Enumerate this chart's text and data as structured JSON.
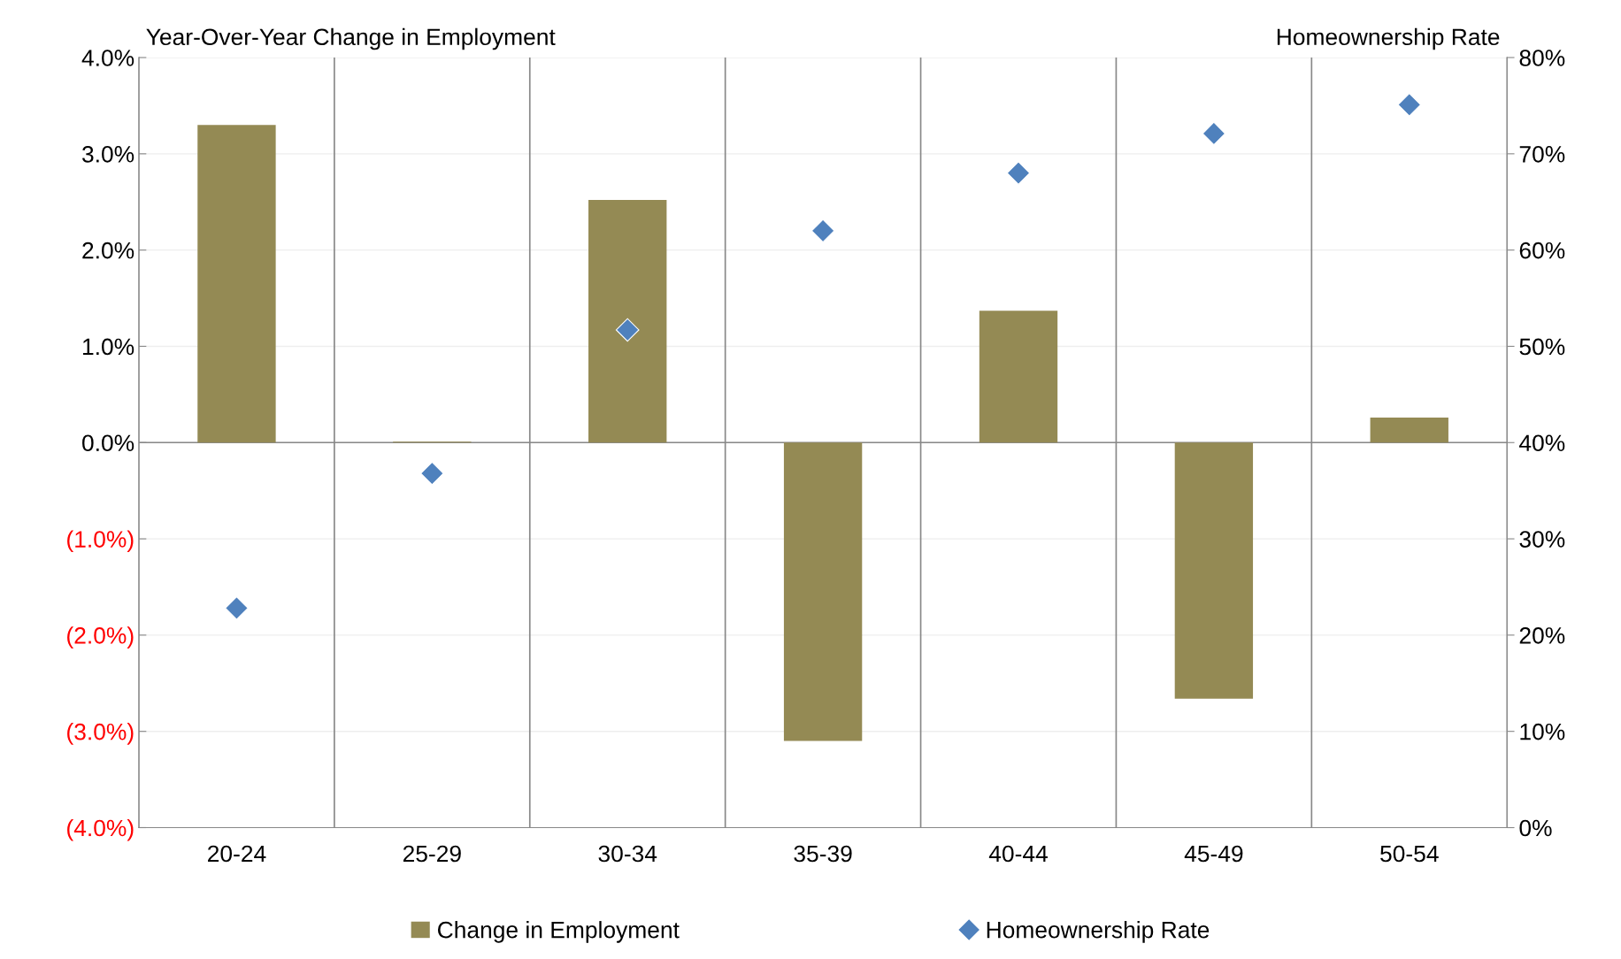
{
  "chart_data": {
    "type": "bar",
    "ylabel": "Year-Over-Year Change in Employment",
    "y2label": "Homeownership Rate",
    "categories": [
      "20-24",
      "25-29",
      "30-34",
      "35-39",
      "40-44",
      "45-49",
      "50-54"
    ],
    "series": [
      {
        "name": "Change in Employment",
        "color": "#948a54",
        "values": [
          3.3,
          0.01,
          2.52,
          -3.1,
          1.37,
          -2.66,
          0.26
        ]
      },
      {
        "name": "Homeownership Rate",
        "type": "scatter",
        "axis": "y2",
        "color": "#4f81bd",
        "marker": "diamond",
        "values": [
          22.8,
          36.8,
          51.7,
          62.0,
          68.0,
          72.1,
          75.1
        ]
      }
    ],
    "ylim": [
      -4,
      4
    ],
    "yticks": [
      {
        "value": 4,
        "label": "4.0%"
      },
      {
        "value": 3,
        "label": "3.0%"
      },
      {
        "value": 2,
        "label": "2.0%"
      },
      {
        "value": 1,
        "label": "1.0%"
      },
      {
        "value": 0,
        "label": "0.0%"
      },
      {
        "value": -1,
        "label": "(1.0%)"
      },
      {
        "value": -2,
        "label": "(2.0%)"
      },
      {
        "value": -3,
        "label": "(3.0%)"
      },
      {
        "value": -4,
        "label": "(4.0%)"
      }
    ],
    "y2lim": [
      0,
      80
    ],
    "y2ticks": [
      {
        "value": 80,
        "label": "80%"
      },
      {
        "value": 70,
        "label": "70%"
      },
      {
        "value": 60,
        "label": "60%"
      },
      {
        "value": 50,
        "label": "50%"
      },
      {
        "value": 40,
        "label": "40%"
      },
      {
        "value": 30,
        "label": "30%"
      },
      {
        "value": 20,
        "label": "20%"
      },
      {
        "value": 10,
        "label": "10%"
      },
      {
        "value": 0,
        "label": "0%"
      }
    ],
    "grid": true,
    "legend": "bottom"
  }
}
